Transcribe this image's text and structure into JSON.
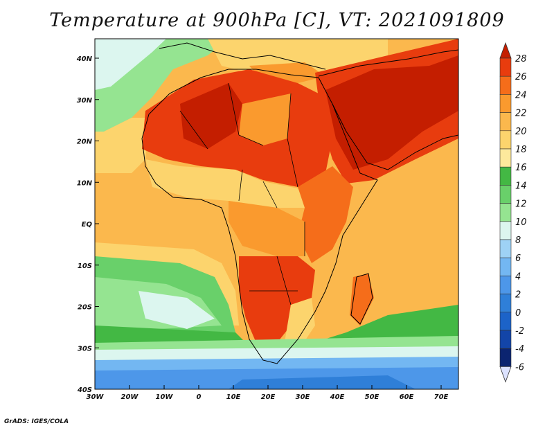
{
  "title": "Temperature at 900hPa [C], VT: 2021091809",
  "credit": "GrADS: IGES/COLA",
  "lon_labels": [
    "30W",
    "20W",
    "10W",
    "0",
    "10E",
    "20E",
    "30E",
    "40E",
    "50E",
    "60E",
    "70E"
  ],
  "lat_labels": [
    "40N",
    "30N",
    "20N",
    "10N",
    "EQ",
    "10S",
    "20S",
    "30S",
    "40S"
  ],
  "colorbar": {
    "levels": [
      "28",
      "26",
      "24",
      "22",
      "20",
      "18",
      "16",
      "14",
      "12",
      "10",
      "8",
      "6",
      "4",
      "2",
      "0",
      "-2",
      "-4",
      "-6"
    ],
    "colors": [
      "#c41e00",
      "#e83c0e",
      "#f56d1a",
      "#fa9a2e",
      "#fbb84d",
      "#fcd46d",
      "#fde99c",
      "#43b844",
      "#69d06a",
      "#95e491",
      "#dcf6ef",
      "#9ed2f5",
      "#73b7f2",
      "#4d97e9",
      "#2f7fd8",
      "#1c63c8",
      "#1345a8",
      "#0b2470"
    ]
  },
  "regions": {
    "ocean_north_cool": "#95e491",
    "ocean_north_cold": "#dcf6ef",
    "atlantic_warm": "#fcd46d",
    "atlantic_mid": "#fbb84d",
    "sahara_hot": "#e83c0e",
    "sahara_core": "#c41e00",
    "arabia_core": "#c41e00",
    "arabia_hot": "#e83c0e",
    "east_africa": "#f56d1a",
    "central_africa": "#fa9a2e",
    "southern_africa": "#e83c0e",
    "indian_ocean": "#fbb84d",
    "south_atlantic_green": "#69d06a",
    "south_atlantic_light": "#95e491",
    "south_pale": "#dcf6ef",
    "south_cold": "#73b7f2",
    "south_colder": "#4d97e9",
    "highlands_green": "#43b844",
    "coastline": "#000000"
  }
}
